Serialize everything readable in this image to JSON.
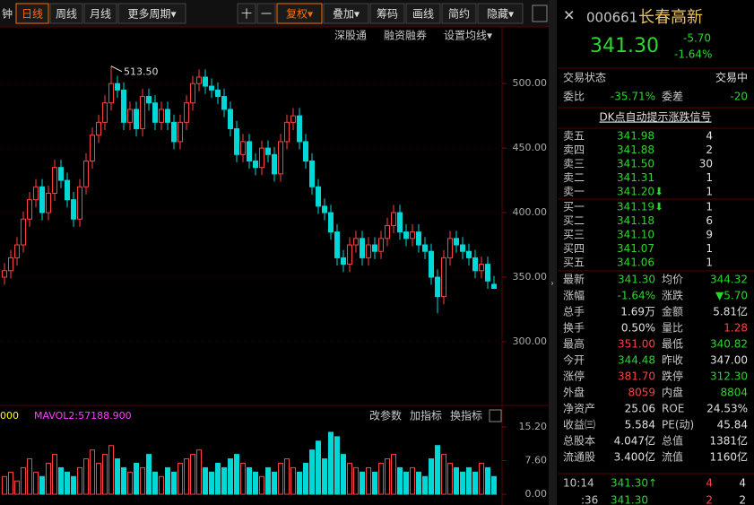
{
  "toolbar": {
    "periods": [
      "钟",
      "日线",
      "周线",
      "月线",
      "更多周期▾"
    ],
    "tools": [
      "十",
      "一",
      "复权▾",
      "叠加▾",
      "筹码",
      "画线",
      "简约",
      "隐藏▾"
    ],
    "sub": [
      "深股通",
      "融资融券",
      "设置均线▾"
    ]
  },
  "chart_data": [
    {
      "type": "candlestick",
      "annotation": "513.50",
      "open": [
        350,
        355,
        365,
        375,
        395,
        410,
        420,
        400,
        415,
        435,
        425,
        410,
        395,
        420,
        440,
        460,
        470,
        485,
        500,
        495,
        470,
        480,
        465,
        490,
        485,
        470,
        480,
        470,
        455,
        470,
        485,
        500,
        505,
        498,
        495,
        490,
        480,
        465,
        445,
        455,
        440,
        435,
        450,
        445,
        430,
        455,
        470,
        475,
        455,
        440,
        420,
        405,
        400,
        385,
        365,
        360,
        375,
        380,
        365,
        375,
        370,
        380,
        390,
        400,
        385,
        380,
        385,
        375,
        370,
        350,
        335,
        365,
        380,
        375,
        370,
        365,
        355,
        360,
        344.48
      ],
      "high": [
        361,
        371,
        381,
        401,
        416,
        426,
        426,
        421,
        441,
        441,
        431,
        416,
        426,
        446,
        466,
        476,
        491,
        513.5,
        506,
        501,
        486,
        486,
        496,
        496,
        491,
        486,
        486,
        476,
        476,
        491,
        506,
        511,
        511,
        504,
        501,
        496,
        486,
        471,
        461,
        461,
        446,
        456,
        456,
        451,
        461,
        476,
        481,
        481,
        461,
        446,
        426,
        411,
        406,
        391,
        371,
        381,
        386,
        386,
        381,
        381,
        386,
        396,
        406,
        406,
        391,
        391,
        391,
        381,
        376,
        356,
        371,
        386,
        386,
        381,
        376,
        371,
        366,
        366,
        351
      ],
      "low": [
        344,
        349,
        359,
        369,
        389,
        404,
        394,
        394,
        409,
        419,
        404,
        389,
        389,
        414,
        434,
        454,
        464,
        479,
        489,
        464,
        464,
        459,
        459,
        479,
        464,
        464,
        464,
        449,
        449,
        464,
        479,
        494,
        492,
        489,
        484,
        474,
        459,
        439,
        439,
        434,
        429,
        429,
        439,
        424,
        424,
        449,
        464,
        449,
        434,
        414,
        399,
        394,
        379,
        359,
        354,
        354,
        369,
        359,
        359,
        364,
        364,
        374,
        384,
        379,
        374,
        374,
        369,
        364,
        344,
        322,
        329,
        359,
        369,
        364,
        359,
        349,
        349,
        341,
        340.82
      ],
      "close": [
        355,
        365,
        375,
        395,
        410,
        420,
        400,
        415,
        435,
        425,
        410,
        395,
        420,
        440,
        460,
        470,
        485,
        500,
        495,
        470,
        480,
        465,
        490,
        485,
        470,
        480,
        470,
        455,
        470,
        485,
        500,
        505,
        498,
        495,
        490,
        480,
        465,
        445,
        455,
        440,
        435,
        450,
        445,
        430,
        455,
        470,
        475,
        455,
        440,
        420,
        405,
        400,
        385,
        365,
        360,
        375,
        380,
        365,
        375,
        370,
        380,
        390,
        400,
        385,
        380,
        385,
        375,
        370,
        350,
        335,
        365,
        380,
        375,
        370,
        365,
        355,
        360,
        347,
        341.3
      ],
      "up_color": "#ff4040",
      "down_color": "#00d8d8",
      "ylim": [
        252,
        530
      ],
      "yticks": [
        {
          "value": 500,
          "label": "500.00"
        },
        {
          "value": 450,
          "label": "450.00"
        },
        {
          "value": 400,
          "label": "400.00"
        },
        {
          "value": 350,
          "label": "350.00"
        },
        {
          "value": 300,
          "label": "300.00"
        }
      ]
    },
    {
      "type": "volume",
      "indicator_left": "000",
      "indicator": "MAVOL2:57188.900",
      "actions": [
        "改参数",
        "加指标",
        "换指标"
      ],
      "values": [
        4,
        5,
        3,
        6,
        8,
        5,
        4,
        7,
        9,
        6,
        5,
        4,
        6,
        8,
        10,
        7,
        9,
        11,
        8,
        6,
        5,
        7,
        6,
        9,
        5,
        4,
        6,
        5,
        7,
        8,
        9,
        10,
        6,
        5,
        7,
        6,
        8,
        9,
        7,
        6,
        5,
        4,
        6,
        5,
        7,
        8,
        6,
        5,
        7,
        10,
        12,
        8,
        14,
        13,
        9,
        7,
        6,
        5,
        6,
        5,
        7,
        8,
        9,
        6,
        5,
        6,
        5,
        4,
        8,
        11,
        9,
        7,
        6,
        5,
        6,
        5,
        7,
        6,
        4
      ],
      "ylim": [
        0,
        15.2
      ],
      "yticks": [
        {
          "value": 15.2,
          "label": "15.20"
        },
        {
          "value": 7.6,
          "label": "7.60"
        },
        {
          "value": 0,
          "label": "0.00"
        }
      ]
    }
  ],
  "quote": {
    "code": "000661",
    "name": "长春高新",
    "price": "341.30",
    "change": "-5.70",
    "change_pct": "-1.64%"
  },
  "status": [
    "交易状态",
    "交易中"
  ],
  "order_ratio": [
    "委比",
    "-35.71%",
    "委差",
    "-20"
  ],
  "signal": "DK点自动提示涨跌信号",
  "asks": [
    [
      "卖五",
      "341.98",
      "4"
    ],
    [
      "卖四",
      "341.88",
      "2"
    ],
    [
      "卖三",
      "341.50",
      "30"
    ],
    [
      "卖二",
      "341.31",
      "1"
    ],
    [
      "卖一",
      "341.20⬇",
      "1"
    ]
  ],
  "bids": [
    [
      "买一",
      "341.19⬇",
      "1"
    ],
    [
      "买二",
      "341.18",
      "6"
    ],
    [
      "买三",
      "341.10",
      "9"
    ],
    [
      "买四",
      "341.07",
      "1"
    ],
    [
      "买五",
      "341.06",
      "1"
    ]
  ],
  "stats": [
    {
      "cells": [
        "最新",
        "341.30",
        "均价",
        "344.32"
      ],
      "colors": [
        "#2ed52e",
        "#2ed52e"
      ]
    },
    {
      "cells": [
        "涨幅",
        "-1.64%",
        "涨跌",
        "▼5.70"
      ],
      "colors": [
        "#2ed52e",
        "#2ed52e"
      ]
    },
    {
      "cells": [
        "总手",
        "1.69万",
        "金额",
        "5.81亿"
      ],
      "colors": [
        "#e0e0e0",
        "#e0e0e0"
      ]
    },
    {
      "cells": [
        "换手",
        "0.50%",
        "量比",
        "1.28"
      ],
      "colors": [
        "#e0e0e0",
        "#ff4040"
      ]
    },
    {
      "cells": [
        "最高",
        "351.00",
        "最低",
        "340.82"
      ],
      "colors": [
        "#ff4040",
        "#2ed52e"
      ]
    },
    {
      "cells": [
        "今开",
        "344.48",
        "昨收",
        "347.00"
      ],
      "colors": [
        "#2ed52e",
        "#e0e0e0"
      ]
    },
    {
      "cells": [
        "涨停",
        "381.70",
        "跌停",
        "312.30"
      ],
      "colors": [
        "#ff4040",
        "#2ed52e"
      ]
    },
    {
      "cells": [
        "外盘",
        "8059",
        "内盘",
        "8804"
      ],
      "colors": [
        "#ff4040",
        "#2ed52e"
      ]
    },
    {
      "cells": [
        "净资产",
        "25.06",
        "ROE",
        "24.53%"
      ],
      "colors": [
        "#e0e0e0",
        "#e0e0e0"
      ]
    },
    {
      "cells": [
        "收益㈢",
        "5.584",
        "PE(动)",
        "45.84"
      ],
      "colors": [
        "#e0e0e0",
        "#e0e0e0"
      ]
    },
    {
      "cells": [
        "总股本",
        "4.047亿",
        "总值",
        "1381亿"
      ],
      "colors": [
        "#e0e0e0",
        "#e0e0e0"
      ]
    },
    {
      "cells": [
        "流通股",
        "3.400亿",
        "流值",
        "1160亿"
      ],
      "colors": [
        "#e0e0e0",
        "#e0e0e0"
      ]
    }
  ],
  "ticks": [
    [
      "10:14",
      "341.30↑",
      "4",
      "4"
    ],
    [
      ":36",
      "341.30",
      "2",
      "2"
    ]
  ]
}
